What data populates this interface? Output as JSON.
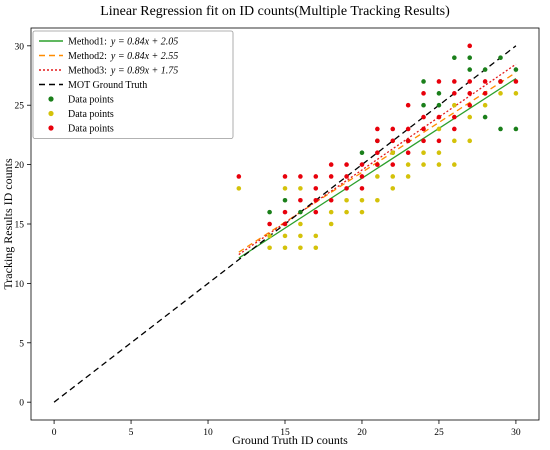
{
  "chart_data": {
    "type": "scatter",
    "title": "Linear Regression fit on ID counts(Multiple Tracking Results)",
    "xlabel": "Ground Truth ID counts",
    "ylabel": "Tracking Results ID counts",
    "xlim": [
      -1.5,
      31.5
    ],
    "ylim": [
      -1.5,
      31.5
    ],
    "xticks": [
      0,
      5,
      10,
      15,
      20,
      25,
      30
    ],
    "yticks": [
      0,
      5,
      10,
      15,
      20,
      25,
      30
    ],
    "grid": false,
    "legend_position": "top-left",
    "lines": [
      {
        "label": "Method1:",
        "equation": "y = 0.84x + 2.05",
        "slope": 0.84,
        "intercept": 2.05,
        "x_range": [
          12,
          30
        ],
        "color": "#2ca02c",
        "style": "solid"
      },
      {
        "label": "Method2:",
        "equation": "y = 0.84x + 2.55",
        "slope": 0.84,
        "intercept": 2.55,
        "x_range": [
          12,
          30
        ],
        "color": "#ff8c00",
        "style": "dashed"
      },
      {
        "label": "Method3:",
        "equation": "y = 0.89x + 1.75",
        "slope": 0.89,
        "intercept": 1.75,
        "x_range": [
          12,
          30
        ],
        "color": "#e41a1c",
        "style": "dotted"
      },
      {
        "label": "MOT Ground Truth",
        "slope": 1,
        "intercept": 0,
        "x_range": [
          0,
          30
        ],
        "color": "#000000",
        "style": "dashed"
      }
    ],
    "series": [
      {
        "name": "Data points",
        "color": "#1a7f1a",
        "points": [
          [
            14,
            16
          ],
          [
            15,
            17
          ],
          [
            16,
            16
          ],
          [
            20,
            21
          ],
          [
            21,
            22
          ],
          [
            22,
            21
          ],
          [
            23,
            22
          ],
          [
            24,
            25
          ],
          [
            24,
            27
          ],
          [
            25,
            25
          ],
          [
            25,
            26
          ],
          [
            26,
            29
          ],
          [
            27,
            28
          ],
          [
            27,
            29
          ],
          [
            28,
            28
          ],
          [
            29,
            27
          ],
          [
            29,
            29
          ],
          [
            30,
            28
          ],
          [
            30,
            23
          ],
          [
            28,
            24
          ],
          [
            29,
            23
          ]
        ]
      },
      {
        "name": "Data points",
        "color": "#d4c20a",
        "points": [
          [
            12,
            18
          ],
          [
            14,
            13
          ],
          [
            14,
            14
          ],
          [
            15,
            13
          ],
          [
            15,
            14
          ],
          [
            15,
            18
          ],
          [
            16,
            13
          ],
          [
            16,
            14
          ],
          [
            16,
            15
          ],
          [
            16,
            18
          ],
          [
            17,
            13
          ],
          [
            17,
            14
          ],
          [
            18,
            15
          ],
          [
            18,
            16
          ],
          [
            19,
            16
          ],
          [
            19,
            17
          ],
          [
            20,
            16
          ],
          [
            20,
            17
          ],
          [
            21,
            17
          ],
          [
            21,
            19
          ],
          [
            21,
            20
          ],
          [
            22,
            18
          ],
          [
            22,
            19
          ],
          [
            22,
            21
          ],
          [
            23,
            19
          ],
          [
            23,
            20
          ],
          [
            24,
            20
          ],
          [
            24,
            21
          ],
          [
            25,
            20
          ],
          [
            25,
            21
          ],
          [
            25,
            23
          ],
          [
            26,
            20
          ],
          [
            26,
            22
          ],
          [
            26,
            25
          ],
          [
            27,
            22
          ],
          [
            27,
            24
          ],
          [
            28,
            25
          ],
          [
            28,
            26
          ],
          [
            29,
            26
          ],
          [
            30,
            26
          ]
        ]
      },
      {
        "name": "Data points",
        "color": "#e8000b",
        "points": [
          [
            12,
            19
          ],
          [
            14,
            15
          ],
          [
            15,
            15
          ],
          [
            15,
            16
          ],
          [
            15,
            19
          ],
          [
            16,
            17
          ],
          [
            16,
            19
          ],
          [
            17,
            16
          ],
          [
            17,
            17
          ],
          [
            17,
            18
          ],
          [
            17,
            19
          ],
          [
            18,
            17
          ],
          [
            18,
            19
          ],
          [
            18,
            20
          ],
          [
            19,
            18
          ],
          [
            19,
            19
          ],
          [
            19,
            20
          ],
          [
            20,
            18
          ],
          [
            20,
            19
          ],
          [
            20,
            20
          ],
          [
            21,
            20
          ],
          [
            21,
            21
          ],
          [
            21,
            22
          ],
          [
            21,
            23
          ],
          [
            22,
            20
          ],
          [
            22,
            22
          ],
          [
            22,
            23
          ],
          [
            23,
            21
          ],
          [
            23,
            22
          ],
          [
            23,
            23
          ],
          [
            23,
            25
          ],
          [
            24,
            22
          ],
          [
            24,
            23
          ],
          [
            24,
            24
          ],
          [
            24,
            26
          ],
          [
            25,
            22
          ],
          [
            25,
            24
          ],
          [
            25,
            27
          ],
          [
            26,
            23
          ],
          [
            26,
            24
          ],
          [
            26,
            26
          ],
          [
            26,
            27
          ],
          [
            27,
            25
          ],
          [
            27,
            26
          ],
          [
            27,
            27
          ],
          [
            27,
            30
          ],
          [
            28,
            26
          ],
          [
            28,
            27
          ],
          [
            29,
            27
          ],
          [
            30,
            27
          ]
        ]
      }
    ]
  }
}
